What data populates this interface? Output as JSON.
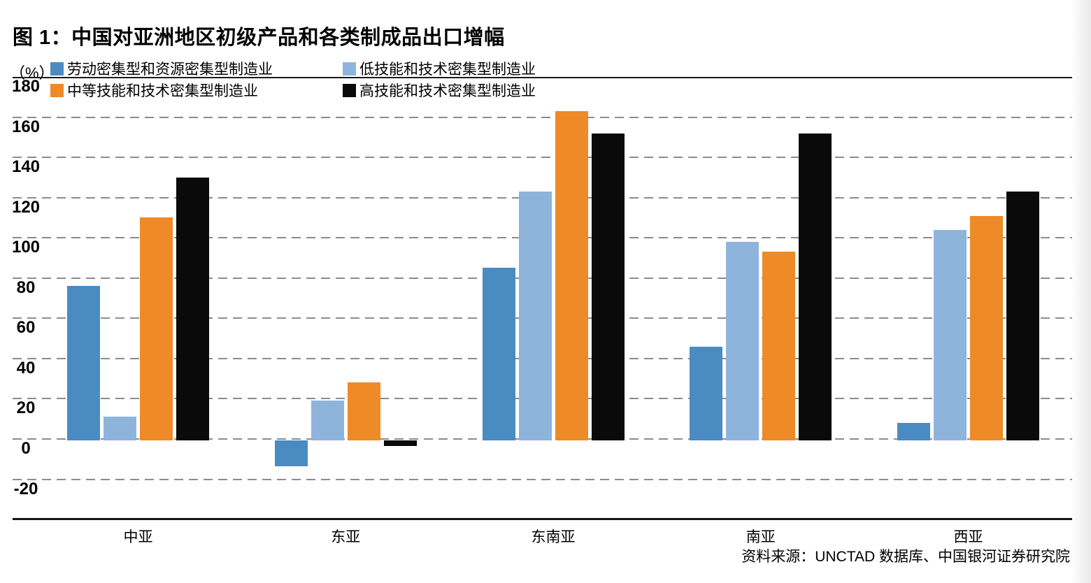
{
  "page": {
    "title": "图 1：中国对亚洲地区初级产品和各类制成品出口增幅",
    "y_axis_unit_label": "（%）",
    "source_note": "资料来源：UNCTAD 数据库、中国银河证券研究院"
  },
  "colors": {
    "series_labor_resource_intensive": "#4A8BC2",
    "series_low_skill_tech_intensive": "#8FB4DC",
    "series_mid_skill_tech_intensive": "#EE8A27",
    "series_high_skill_tech_intensive": "#0A0A0A",
    "gridline": "#8C8C8C",
    "axis_line": "#1A1A1A"
  },
  "chart_data": {
    "type": "bar",
    "title": "中国对亚洲地区初级产品和各类制成品出口增幅",
    "ylabel": "（%）",
    "ylim": [
      -40,
      180
    ],
    "yticks": [
      180,
      160,
      140,
      120,
      100,
      80,
      60,
      40,
      20,
      0,
      -20
    ],
    "grid": "dashed-horizontal",
    "legend_position": "top",
    "categories": [
      "中亚",
      "东亚",
      "东南亚",
      "南亚",
      "西亚"
    ],
    "series": [
      {
        "name": "劳动密集型和资源密集型制造业",
        "color": "#4A8BC2",
        "values": [
          76,
          -13,
          85,
          46,
          8
        ]
      },
      {
        "name": "低技能和技术密集型制造业",
        "color": "#8FB4DC",
        "values": [
          11,
          19,
          123,
          98,
          104
        ]
      },
      {
        "name": "中等技能和技术密集型制造业",
        "color": "#EE8A27",
        "values": [
          110,
          28,
          163,
          93,
          111
        ]
      },
      {
        "name": "高技能和技术密集型制造业",
        "color": "#0A0A0A",
        "values": [
          130,
          -3,
          152,
          152,
          123
        ]
      }
    ]
  }
}
